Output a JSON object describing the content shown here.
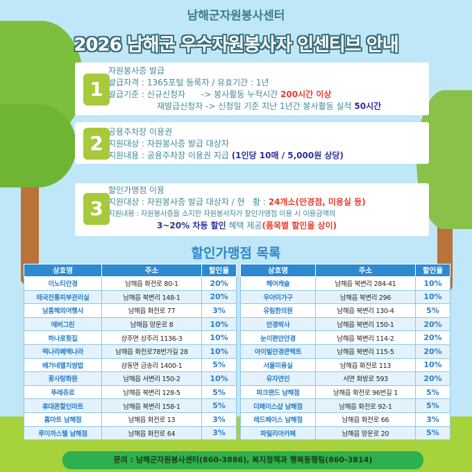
{
  "header": {
    "subtitle": "남해군자원봉사센터",
    "title": "2026 남해군 우수자원봉사자 인센티브 안내"
  },
  "cards": [
    {
      "number": "1",
      "heading": "자원봉사증 발급",
      "line1": "발급자격 : 1365포털 등록자 / 유효기간 : 1년",
      "line2_a": "발급기준 : 신규신청자      -> 봉사활동 누적시간 ",
      "line2_b": "200시간 이상",
      "line3_a": "재발급신청자 -> 신청일 기준 지난 1년간 봉사활동 실적 ",
      "line3_b": "50시간"
    },
    {
      "number": "2",
      "heading": "공용주차장 이용권",
      "line1": "지원대상 : 자원봉사증 발급 대상자",
      "line2_a": "지원내용 : 공용주차장 이용권 지급 ",
      "line2_b": "(1인당 10매 / 5,000원 상당)"
    },
    {
      "number": "3",
      "heading": "할인가맹점 이용",
      "line1_a": "지원대상 : 자원봉사증 발급 대상자 / 현   황 : ",
      "line1_b": "24개소(안경점, 미용실 등)",
      "line2": "지원내용 : 자원봉사증을 소지한 자원봉사자가 할인가맹점 이용 시 이용금액의",
      "line3_a": "3~20% 차등 할인",
      "line3_b": " 혜택 제공",
      "line3_c": "(품목별 할인율 상이)"
    }
  ],
  "list": {
    "title": "할인가맹점 목록",
    "headers": [
      "상호명",
      "주소",
      "할인율"
    ],
    "left": [
      [
        "이노티안경",
        "남해읍 화전로 80-1",
        "20%"
      ],
      [
        "태국전통피부관리실",
        "남해읍 북변리 148-1",
        "20%"
      ],
      [
        "남흥해외여행사",
        "남해읍 화전로 77",
        "3%"
      ],
      [
        "에버그린",
        "남해읍 망운로 8",
        "10%"
      ],
      [
        "하나로횟집",
        "상주면 상주리 1136-3",
        "10%"
      ],
      [
        "떡나라폐백나라",
        "남해읍 화전로78번가길 28",
        "10%"
      ],
      [
        "배가네멸치쌈밥",
        "삼동면 금송리 1400-1",
        "5%"
      ],
      [
        "꽃사랑화원",
        "남해읍 서변리 150-2",
        "10%"
      ],
      [
        "뚜레쥬르",
        "남해읍 북변리 128-5",
        "5%"
      ],
      [
        "휴대폰할인마트",
        "남해읍 북변리 158-1",
        "5%"
      ],
      [
        "홈마트 남해점",
        "남해읍 화전로 13",
        "3%"
      ],
      [
        "루이까스텔 남해점",
        "남해읍 화전로 64",
        "3%"
      ]
    ],
    "right": [
      [
        "헤어캐슬",
        "남해읍 북변리 284-41",
        "10%"
      ],
      [
        "우아미가구",
        "남해읍 북변리 296",
        "10%"
      ],
      [
        "유림한의원",
        "남해읍 북변리 130-4",
        "5%"
      ],
      [
        "안경박사",
        "남해읍 북변리 150-1",
        "20%"
      ],
      [
        "눈이편안안경",
        "남해읍 북변리 114-2",
        "20%"
      ],
      [
        "아이빌안경콘택트",
        "남해읍 북변리 115-5",
        "20%"
      ],
      [
        "서울미용실",
        "남해읍 화전로 113",
        "10%"
      ],
      [
        "유자연인",
        "서면 화방로 593",
        "20%"
      ],
      [
        "파크랜드 남해점",
        "남해읍 화전로 96번길 1",
        "5%"
      ],
      [
        "더페이스샵 남해점",
        "남해읍 화전로 92-1",
        "5%"
      ],
      [
        "레드페이스 남해점",
        "남해읍 화전로 66",
        "3%"
      ],
      [
        "파밀리아카페",
        "남해읍 망운로 20",
        "5%"
      ]
    ]
  },
  "footer": "문의 : 남해군자원봉사센터(860-3886), 복지정책과 행복동행팀(860-3814)",
  "colors": {
    "sky": "#bfe7f8",
    "badge": "#a7c93b",
    "header": "#2d8ad0",
    "highlight_red": "#ee3b2a",
    "highlight_blue": "#2e2f9a"
  }
}
